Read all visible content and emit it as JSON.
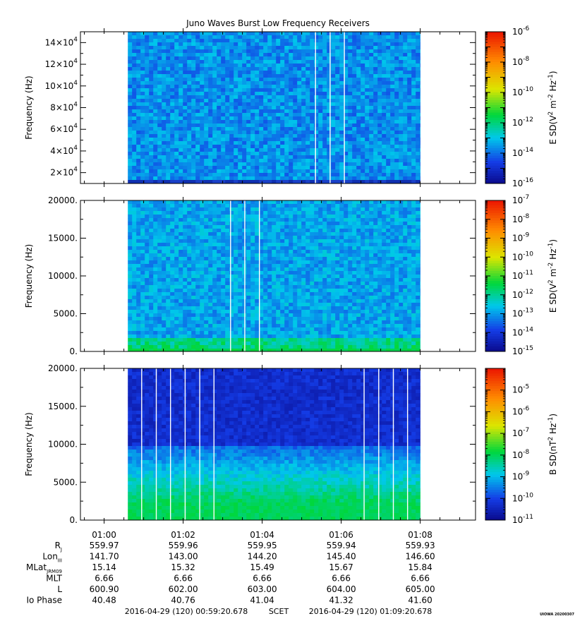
{
  "title": "Juno Waves Burst Low Frequency Receivers",
  "colors": {
    "background": "#ffffff",
    "axis": "#000000",
    "gap_line": "#ffffff"
  },
  "chart_data": [
    {
      "type": "heatmap",
      "name": "panel-1",
      "ylabel": "Frequency (Hz)",
      "ylim": [
        10000,
        150000
      ],
      "yticks": [
        {
          "value": 20000,
          "mant": "2×10",
          "exp": "4"
        },
        {
          "value": 40000,
          "mant": "4×10",
          "exp": "4"
        },
        {
          "value": 60000,
          "mant": "6×10",
          "exp": "4"
        },
        {
          "value": 80000,
          "mant": "8×10",
          "exp": "4"
        },
        {
          "value": 100000,
          "mant": "10×10",
          "exp": "4"
        },
        {
          "value": 120000,
          "mant": "12×10",
          "exp": "4"
        },
        {
          "value": 140000,
          "mant": "14×10",
          "exp": "4"
        }
      ],
      "data_start_min": 0.6,
      "data_end_min": 8.0,
      "data_gaps_min": [
        5.35,
        5.72,
        6.08
      ],
      "palette": "blue",
      "colorbar": {
        "label_main": "E SD(V",
        "label_rest": [
          [
            "2",
            " m"
          ],
          [
            "-2",
            " Hz"
          ],
          [
            "-1",
            ")"
          ]
        ],
        "log_range": [
          -16,
          -6
        ],
        "tick_exps": [
          "-16",
          "-14",
          "-12",
          "-10",
          "-8",
          "-6"
        ]
      }
    },
    {
      "type": "heatmap",
      "name": "panel-2",
      "ylabel": "Frequency (Hz)",
      "ylim": [
        0,
        20000
      ],
      "yticks": [
        {
          "value": 0,
          "label": "0."
        },
        {
          "value": 5000,
          "label": "5000."
        },
        {
          "value": 10000,
          "label": "10000."
        },
        {
          "value": 15000,
          "label": "15000."
        },
        {
          "value": 20000,
          "label": "20000."
        }
      ],
      "data_start_min": 0.6,
      "data_end_min": 8.0,
      "data_gaps_min": [
        3.2,
        3.56,
        3.93
      ],
      "palette": "cyan",
      "colorbar": {
        "label_main": "E SD(V",
        "label_rest": [
          [
            "2",
            " m"
          ],
          [
            "-2",
            " Hz"
          ],
          [
            "-1",
            ")"
          ]
        ],
        "log_range": [
          -15,
          -7
        ],
        "tick_exps": [
          "-15",
          "-14",
          "-13",
          "-12",
          "-11",
          "-10",
          "-9",
          "-8",
          "-7"
        ]
      }
    },
    {
      "type": "heatmap",
      "name": "panel-3",
      "ylabel": "Frequency (Hz)",
      "ylim": [
        0,
        20000
      ],
      "yticks": [
        {
          "value": 0,
          "label": "0."
        },
        {
          "value": 5000,
          "label": "5000."
        },
        {
          "value": 10000,
          "label": "10000."
        },
        {
          "value": 15000,
          "label": "15000."
        },
        {
          "value": 20000,
          "label": "20000."
        }
      ],
      "data_start_min": 0.6,
      "data_end_min": 8.0,
      "data_gaps_min": [
        0.95,
        1.32,
        1.68,
        2.05,
        2.42,
        2.78,
        6.58,
        6.95,
        7.32,
        7.68
      ],
      "palette": "bsd",
      "colorbar": {
        "label_main": "B SD(nT",
        "label_rest": [
          [
            "2",
            " Hz"
          ],
          [
            "-1",
            ")"
          ]
        ],
        "log_range": [
          -11,
          -4
        ],
        "tick_exps": [
          "-11",
          "-10",
          "-9",
          "-8",
          "-7",
          "-6",
          "-5"
        ]
      }
    }
  ],
  "time_axis": {
    "range_min": [
      -0.6,
      9.4
    ],
    "ticks": [
      {
        "value": 0,
        "label": "01:00"
      },
      {
        "value": 2,
        "label": "01:02"
      },
      {
        "value": 4,
        "label": "01:04"
      },
      {
        "value": 6,
        "label": "01:06"
      },
      {
        "value": 8,
        "label": "01:08"
      }
    ]
  },
  "ephemeris": [
    {
      "label": "R",
      "sub": "J",
      "values": [
        "559.97",
        "559.96",
        "559.95",
        "559.94",
        "559.93"
      ]
    },
    {
      "label": "Lon",
      "sub": "III",
      "values": [
        "141.70",
        "143.00",
        "144.20",
        "145.40",
        "146.60"
      ]
    },
    {
      "label": "MLat",
      "sub": "JRM09",
      "values": [
        "15.14",
        "15.32",
        "15.49",
        "15.67",
        "15.84"
      ]
    },
    {
      "label": "MLT",
      "sub": "",
      "values": [
        "6.66",
        "6.66",
        "6.66",
        "6.66",
        "6.66"
      ]
    },
    {
      "label": "L",
      "sub": "",
      "values": [
        "600.90",
        "602.00",
        "603.00",
        "604.00",
        "605.00"
      ]
    },
    {
      "label": "Io Phase",
      "sub": "",
      "values": [
        "40.48",
        "40.76",
        "41.04",
        "41.32",
        "41.60"
      ]
    }
  ],
  "footer": {
    "start": "2016-04-29 (120) 00:59:20.678",
    "mid": "SCET",
    "end": "2016-04-29 (120) 01:09:20.678"
  },
  "credit": "UIOWA 20200307"
}
